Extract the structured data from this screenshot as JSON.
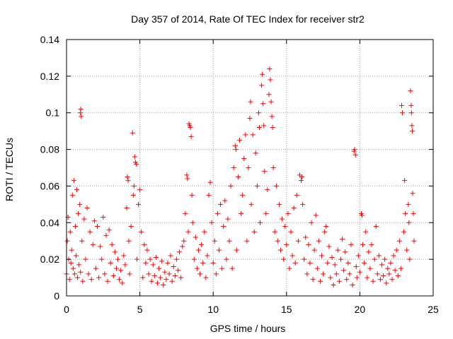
{
  "chart_data": {
    "type": "scatter",
    "title": "Day 357 of 2014, Rate Of TEC Index for receiver str2",
    "xlabel": "GPS time / hours",
    "ylabel": "ROTI / TECUs",
    "xlim": [
      0,
      25
    ],
    "ylim": [
      0,
      0.14
    ],
    "x_ticks": [
      0,
      5,
      10,
      15,
      20,
      25
    ],
    "x_tick_labels": [
      "0",
      "5",
      "10",
      "15",
      "20",
      "25"
    ],
    "y_ticks": [
      0,
      0.02,
      0.04,
      0.06,
      0.08,
      0.1,
      0.12,
      0.14
    ],
    "y_tick_labels": [
      "0",
      "0.02",
      "0.04",
      "0.06",
      "0.08",
      "0.1",
      "0.12",
      "0.14"
    ],
    "grid": true,
    "marker": "+",
    "series": [
      {
        "name": "ROTI",
        "color": "#ff0000",
        "points": [
          [
            0.0,
            0.012
          ],
          [
            0.05,
            0.03
          ],
          [
            0.1,
            0.043
          ],
          [
            0.15,
            0.02
          ],
          [
            0.2,
            0.009
          ],
          [
            0.25,
            0.035
          ],
          [
            0.3,
            0.018
          ],
          [
            0.35,
            0.025
          ],
          [
            0.4,
            0.055
          ],
          [
            0.45,
            0.015
          ],
          [
            0.5,
            0.063
          ],
          [
            0.55,
            0.012
          ],
          [
            0.6,
            0.038
          ],
          [
            0.65,
            0.022
          ],
          [
            0.7,
            0.058
          ],
          [
            0.75,
            0.01
          ],
          [
            0.8,
            0.045
          ],
          [
            0.85,
            0.017
          ],
          [
            0.9,
            0.05
          ],
          [
            0.95,
            0.013
          ],
          [
            0.95,
            0.1
          ],
          [
            0.97,
            0.102
          ],
          [
            1.0,
            0.098
          ],
          [
            1.05,
            0.03
          ],
          [
            1.1,
            0.008
          ],
          [
            1.2,
            0.042
          ],
          [
            1.3,
            0.02
          ],
          [
            1.4,
            0.048
          ],
          [
            1.5,
            0.012
          ],
          [
            1.6,
            0.035
          ],
          [
            1.7,
            0.009
          ],
          [
            1.8,
            0.028
          ],
          [
            1.9,
            0.041
          ],
          [
            2.0,
            0.015
          ],
          [
            2.1,
            0.038
          ],
          [
            2.2,
            0.01
          ],
          [
            2.3,
            0.027
          ],
          [
            2.4,
            0.02
          ],
          [
            2.5,
            0.043
          ],
          [
            2.6,
            0.012
          ],
          [
            2.7,
            0.033
          ],
          [
            2.8,
            0.008
          ],
          [
            2.9,
            0.036
          ],
          [
            3.0,
            0.018
          ],
          [
            3.1,
            0.028
          ],
          [
            3.2,
            0.011
          ],
          [
            3.3,
            0.024
          ],
          [
            3.4,
            0.015
          ],
          [
            3.5,
            0.02
          ],
          [
            3.6,
            0.009
          ],
          [
            3.7,
            0.014
          ],
          [
            3.8,
            0.007
          ],
          [
            3.9,
            0.022
          ],
          [
            4.0,
            0.017
          ],
          [
            4.1,
            0.048
          ],
          [
            4.15,
            0.065
          ],
          [
            4.2,
            0.063
          ],
          [
            4.25,
            0.03
          ],
          [
            4.3,
            0.012
          ],
          [
            4.4,
            0.038
          ],
          [
            4.5,
            0.089
          ],
          [
            4.55,
            0.055
          ],
          [
            4.6,
            0.06
          ],
          [
            4.65,
            0.076
          ],
          [
            4.7,
            0.073
          ],
          [
            4.75,
            0.072
          ],
          [
            4.8,
            0.02
          ],
          [
            4.9,
            0.05
          ],
          [
            5.0,
            0.058
          ],
          [
            5.1,
            0.035
          ],
          [
            5.2,
            0.01
          ],
          [
            5.3,
            0.028
          ],
          [
            5.4,
            0.018
          ],
          [
            5.5,
            0.025
          ],
          [
            5.6,
            0.012
          ],
          [
            5.7,
            0.02
          ],
          [
            5.8,
            0.008
          ],
          [
            5.9,
            0.017
          ],
          [
            6.0,
            0.011
          ],
          [
            6.1,
            0.021
          ],
          [
            6.2,
            0.007
          ],
          [
            6.3,
            0.015
          ],
          [
            6.4,
            0.01
          ],
          [
            6.5,
            0.019
          ],
          [
            6.6,
            0.006
          ],
          [
            6.7,
            0.013
          ],
          [
            6.8,
            0.009
          ],
          [
            6.9,
            0.018
          ],
          [
            7.0,
            0.012
          ],
          [
            7.1,
            0.022
          ],
          [
            7.2,
            0.008
          ],
          [
            7.3,
            0.016
          ],
          [
            7.4,
            0.011
          ],
          [
            7.5,
            0.02
          ],
          [
            7.6,
            0.014
          ],
          [
            7.7,
            0.024
          ],
          [
            7.8,
            0.01
          ],
          [
            7.9,
            0.027
          ],
          [
            8.0,
            0.03
          ],
          [
            8.1,
            0.045
          ],
          [
            8.2,
            0.066
          ],
          [
            8.25,
            0.064
          ],
          [
            8.3,
            0.035
          ],
          [
            8.35,
            0.094
          ],
          [
            8.4,
            0.093
          ],
          [
            8.45,
            0.092
          ],
          [
            8.5,
            0.087
          ],
          [
            8.55,
            0.055
          ],
          [
            8.6,
            0.04
          ],
          [
            8.7,
            0.02
          ],
          [
            8.8,
            0.032
          ],
          [
            8.9,
            0.015
          ],
          [
            9.0,
            0.025
          ],
          [
            9.1,
            0.012
          ],
          [
            9.2,
            0.028
          ],
          [
            9.3,
            0.018
          ],
          [
            9.4,
            0.035
          ],
          [
            9.5,
            0.01
          ],
          [
            9.6,
            0.022
          ],
          [
            9.7,
            0.055
          ],
          [
            9.8,
            0.062
          ],
          [
            9.9,
            0.04
          ],
          [
            10.0,
            0.018
          ],
          [
            10.1,
            0.03
          ],
          [
            10.2,
            0.012
          ],
          [
            10.3,
            0.045
          ],
          [
            10.4,
            0.025
          ],
          [
            10.5,
            0.05
          ],
          [
            10.6,
            0.015
          ],
          [
            10.7,
            0.038
          ],
          [
            10.8,
            0.052
          ],
          [
            10.9,
            0.02
          ],
          [
            11.0,
            0.042
          ],
          [
            11.1,
            0.03
          ],
          [
            11.2,
            0.06
          ],
          [
            11.3,
            0.015
          ],
          [
            11.4,
            0.07
          ],
          [
            11.5,
            0.082
          ],
          [
            11.55,
            0.08
          ],
          [
            11.6,
            0.025
          ],
          [
            11.7,
            0.065
          ],
          [
            11.8,
            0.085
          ],
          [
            11.9,
            0.045
          ],
          [
            12.0,
            0.055
          ],
          [
            12.1,
            0.075
          ],
          [
            12.2,
            0.088
          ],
          [
            12.3,
            0.03
          ],
          [
            12.4,
            0.07
          ],
          [
            12.5,
            0.097
          ],
          [
            12.55,
            0.106
          ],
          [
            12.6,
            0.05
          ],
          [
            12.7,
            0.088
          ],
          [
            12.8,
            0.035
          ],
          [
            12.9,
            0.078
          ],
          [
            13.0,
            0.06
          ],
          [
            13.1,
            0.1
          ],
          [
            13.15,
            0.092
          ],
          [
            13.2,
            0.04
          ],
          [
            13.3,
            0.115
          ],
          [
            13.35,
            0.121
          ],
          [
            13.4,
            0.105
          ],
          [
            13.45,
            0.093
          ],
          [
            13.5,
            0.068
          ],
          [
            13.6,
            0.045
          ],
          [
            13.7,
            0.058
          ],
          [
            13.8,
            0.11
          ],
          [
            13.85,
            0.124
          ],
          [
            13.9,
            0.118
          ],
          [
            13.95,
            0.106
          ],
          [
            14.0,
            0.098
          ],
          [
            14.05,
            0.092
          ],
          [
            14.1,
            0.07
          ],
          [
            14.2,
            0.035
          ],
          [
            14.3,
            0.06
          ],
          [
            14.4,
            0.03
          ],
          [
            14.5,
            0.05
          ],
          [
            14.6,
            0.025
          ],
          [
            14.7,
            0.042
          ],
          [
            14.8,
            0.02
          ],
          [
            14.9,
            0.038
          ],
          [
            15.0,
            0.028
          ],
          [
            15.1,
            0.045
          ],
          [
            15.2,
            0.015
          ],
          [
            15.3,
            0.035
          ],
          [
            15.4,
            0.022
          ],
          [
            15.5,
            0.048
          ],
          [
            15.6,
            0.018
          ],
          [
            15.7,
            0.055
          ],
          [
            15.8,
            0.03
          ],
          [
            15.9,
            0.066
          ],
          [
            16.0,
            0.063
          ],
          [
            16.05,
            0.065
          ],
          [
            16.1,
            0.05
          ],
          [
            16.2,
            0.02
          ],
          [
            16.3,
            0.032
          ],
          [
            16.4,
            0.012
          ],
          [
            16.5,
            0.028
          ],
          [
            16.6,
            0.018
          ],
          [
            16.7,
            0.04
          ],
          [
            16.8,
            0.009
          ],
          [
            16.9,
            0.025
          ],
          [
            17.0,
            0.044
          ],
          [
            17.1,
            0.015
          ],
          [
            17.2,
            0.03
          ],
          [
            17.3,
            0.008
          ],
          [
            17.4,
            0.022
          ],
          [
            17.5,
            0.012
          ],
          [
            17.6,
            0.035
          ],
          [
            17.7,
            0.038
          ],
          [
            17.8,
            0.018
          ],
          [
            17.9,
            0.027
          ],
          [
            18.0,
            0.01
          ],
          [
            18.1,
            0.021
          ],
          [
            18.2,
            0.006
          ],
          [
            18.3,
            0.017
          ],
          [
            18.4,
            0.012
          ],
          [
            18.5,
            0.025
          ],
          [
            18.6,
            0.008
          ],
          [
            18.7,
            0.02
          ],
          [
            18.8,
            0.031
          ],
          [
            18.9,
            0.014
          ],
          [
            19.0,
            0.024
          ],
          [
            19.1,
            0.009
          ],
          [
            19.2,
            0.018
          ],
          [
            19.3,
            0.012
          ],
          [
            19.4,
            0.028
          ],
          [
            19.5,
            0.006
          ],
          [
            19.6,
            0.079
          ],
          [
            19.65,
            0.08
          ],
          [
            19.7,
            0.077
          ],
          [
            19.75,
            0.016
          ],
          [
            19.8,
            0.01
          ],
          [
            19.9,
            0.022
          ],
          [
            20.0,
            0.013
          ],
          [
            20.1,
            0.045
          ],
          [
            20.15,
            0.044
          ],
          [
            20.2,
            0.028
          ],
          [
            20.3,
            0.018
          ],
          [
            20.4,
            0.035
          ],
          [
            20.5,
            0.01
          ],
          [
            20.6,
            0.024
          ],
          [
            20.7,
            0.015
          ],
          [
            20.8,
            0.028
          ],
          [
            20.9,
            0.008
          ],
          [
            21.0,
            0.02
          ],
          [
            21.1,
            0.038
          ],
          [
            21.2,
            0.012
          ],
          [
            21.3,
            0.022
          ],
          [
            21.4,
            0.009
          ],
          [
            21.5,
            0.017
          ],
          [
            21.6,
            0.011
          ],
          [
            21.7,
            0.02
          ],
          [
            21.8,
            0.007
          ],
          [
            21.9,
            0.015
          ],
          [
            22.0,
            0.012
          ],
          [
            22.1,
            0.018
          ],
          [
            22.2,
            0.009
          ],
          [
            22.3,
            0.022
          ],
          [
            22.4,
            0.014
          ],
          [
            22.5,
            0.025
          ],
          [
            22.6,
            0.011
          ],
          [
            22.7,
            0.03
          ],
          [
            22.8,
            0.015
          ],
          [
            22.85,
            0.104
          ],
          [
            22.9,
            0.1
          ],
          [
            23.0,
            0.035
          ],
          [
            23.05,
            0.063
          ],
          [
            23.1,
            0.045
          ],
          [
            23.2,
            0.025
          ],
          [
            23.3,
            0.05
          ],
          [
            23.35,
            0.04
          ],
          [
            23.4,
            0.02
          ],
          [
            23.45,
            0.112
          ],
          [
            23.5,
            0.104
          ],
          [
            23.52,
            0.1
          ],
          [
            23.55,
            0.093
          ],
          [
            23.58,
            0.09
          ],
          [
            23.6,
            0.056
          ],
          [
            23.65,
            0.045
          ],
          [
            23.7,
            0.03
          ]
        ]
      }
    ]
  }
}
